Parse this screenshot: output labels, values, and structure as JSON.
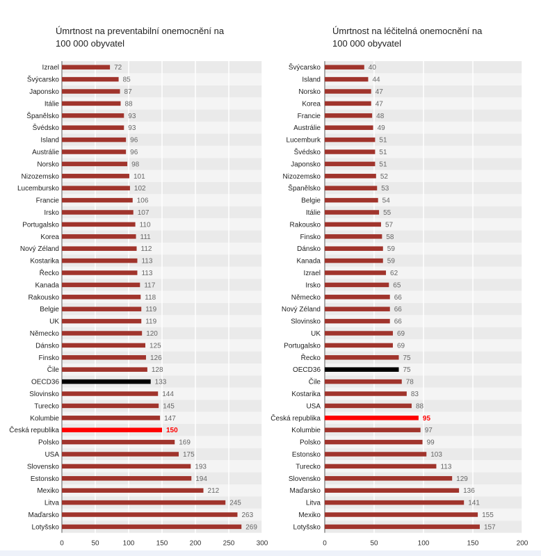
{
  "chart_data": [
    {
      "type": "bar",
      "orientation": "horizontal",
      "title": "Úmrtnost na preventabilní onemocnění na\n100 000 obyvatel",
      "categories": [
        "Izrael",
        "Švýcarsko",
        "Japonsko",
        "Itálie",
        "Španělsko",
        "Švédsko",
        "Island",
        "Austrálie",
        "Norsko",
        "Nizozemsko",
        "Lucembursko",
        "Francie",
        "Irsko",
        "Portugalsko",
        "Korea",
        "Nový Zéland",
        "Kostarika",
        "Řecko",
        "Kanada",
        "Rakousko",
        "Belgie",
        "UK",
        "Německo",
        "Dánsko",
        "Finsko",
        "Čile",
        "OECD36",
        "Slovinsko",
        "Turecko",
        "Kolumbie",
        "Česká republika",
        "Polsko",
        "USA",
        "Slovensko",
        "Estonsko",
        "Mexiko",
        "Litva",
        "Maďarsko",
        "Lotyšsko"
      ],
      "values": [
        72,
        85,
        87,
        88,
        93,
        93,
        96,
        96,
        98,
        101,
        102,
        106,
        107,
        110,
        111,
        112,
        113,
        113,
        117,
        118,
        119,
        119,
        120,
        125,
        126,
        128,
        133,
        144,
        145,
        147,
        150,
        169,
        175,
        193,
        194,
        212,
        245,
        263,
        269
      ],
      "value_labels": [
        "72",
        "85",
        "87",
        "88",
        "93",
        "93",
        "96",
        "96",
        "98",
        "101",
        "102",
        "106",
        "107",
        "110",
        "111",
        "112",
        "113",
        "113",
        "117",
        "118",
        "119",
        "119",
        "120",
        "125",
        "126",
        "128",
        "133",
        "144",
        "145",
        "147",
        "150",
        "169",
        "175",
        "193",
        "194",
        "212",
        "245",
        "263",
        "269"
      ],
      "highlight": {
        "OECD36": "#000000",
        "Česká republika": "#ff0000"
      },
      "bar_color": "#a0342c",
      "xlim": [
        0,
        300
      ],
      "xticks": [
        "0",
        "50",
        "100",
        "150",
        "200",
        "250",
        "300"
      ],
      "grid": "alternating row bands"
    },
    {
      "type": "bar",
      "orientation": "horizontal",
      "title": "Úmrtnost  na léčitelná onemocnění  na\n100 000 obyvatel",
      "categories": [
        "Švýcarsko",
        "Island",
        "Norsko",
        "Korea",
        "Francie",
        "Austrálie",
        "Lucemburk",
        "Švédsko",
        "Japonsko",
        "Nizozemsko",
        "Španělsko",
        "Belgie",
        "Itálie",
        "Rakousko",
        "Finsko",
        "Dánsko",
        "Kanada",
        "Izrael",
        "Irsko",
        "Německo",
        "Nový Zéland",
        "Slovinsko",
        "UK",
        "Portugalsko",
        "Řecko",
        "OECD36",
        "Čile",
        "Kostarika",
        "USA",
        "Česká republika",
        "Kolumbie",
        "Polsko",
        "Estonsko",
        "Turecko",
        "Slovensko",
        "Maďarsko",
        "Litva",
        "Mexiko",
        "Lotyšsko"
      ],
      "values": [
        40,
        44,
        47,
        47,
        48,
        49,
        51,
        51,
        51,
        52,
        53,
        54,
        55,
        57,
        58,
        59,
        59,
        62,
        65,
        66,
        66,
        66,
        69,
        69,
        75,
        75,
        78,
        83,
        88,
        95,
        97,
        99,
        103,
        113,
        129,
        136,
        141,
        155,
        157
      ],
      "value_labels": [
        "40",
        "44",
        "47",
        "47",
        "48",
        "49",
        "51",
        "51",
        "51",
        "52",
        "53",
        "54",
        "55",
        "57",
        "58",
        "59",
        "59",
        "62",
        "65",
        "66",
        "66",
        "66",
        "69",
        "69",
        "75",
        "75",
        "78",
        "83",
        "88",
        "95",
        "97",
        "99",
        "103",
        "113",
        "129",
        "136",
        "141",
        "155",
        "157"
      ],
      "highlight": {
        "OECD36": "#000000",
        "Česká republika": "#ff0000"
      },
      "bar_color": "#a0342c",
      "xlim": [
        0,
        200
      ],
      "xticks": [
        "0",
        "50",
        "100",
        "150",
        "200"
      ],
      "grid": "alternating row bands"
    }
  ]
}
